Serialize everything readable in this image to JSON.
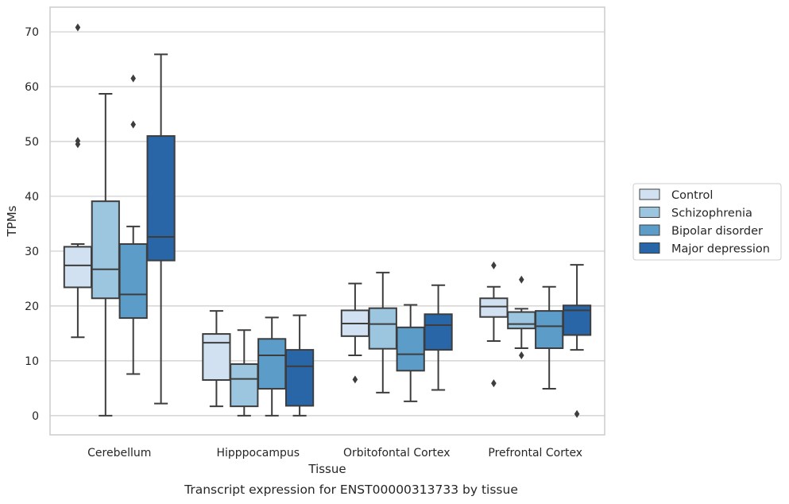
{
  "chart_data": {
    "type": "box",
    "title": "",
    "caption": "Transcript expression for ENST00000313733 by tissue",
    "xlabel": "Tissue",
    "ylabel": "TPMs",
    "ylim": [
      -3.5,
      74.5
    ],
    "yticks": [
      0,
      10,
      20,
      30,
      40,
      50,
      60,
      70
    ],
    "grid": "horizontal",
    "legend_position": "right",
    "categories": [
      "Cerebellum",
      "Hipppocampus",
      "Orbitofontal Cortex",
      "Prefrontal Cortex"
    ],
    "series": [
      {
        "name": "Control",
        "color": "#d1e1f1",
        "boxes": [
          {
            "whislo": 14.3,
            "q1": 23.4,
            "med": 27.4,
            "q3": 30.8,
            "whishi": 31.3,
            "fliers": [
              49.5,
              50.1,
              70.8
            ]
          },
          {
            "whislo": 1.7,
            "q1": 6.5,
            "med": 13.3,
            "q3": 14.9,
            "whishi": 19.1,
            "fliers": []
          },
          {
            "whislo": 11.0,
            "q1": 14.5,
            "med": 16.8,
            "q3": 19.2,
            "whishi": 24.1,
            "fliers": [
              6.6
            ]
          },
          {
            "whislo": 13.6,
            "q1": 18.0,
            "med": 19.9,
            "q3": 21.4,
            "whishi": 23.5,
            "fliers": [
              5.9,
              27.4
            ]
          }
        ]
      },
      {
        "name": "Schizophrenia",
        "color": "#9cc5df",
        "boxes": [
          {
            "whislo": 0.0,
            "q1": 21.4,
            "med": 26.7,
            "q3": 39.1,
            "whishi": 58.7,
            "fliers": []
          },
          {
            "whislo": 0.0,
            "q1": 1.7,
            "med": 6.7,
            "q3": 9.4,
            "whishi": 15.6,
            "fliers": []
          },
          {
            "whislo": 4.2,
            "q1": 12.2,
            "med": 16.7,
            "q3": 19.6,
            "whishi": 26.1,
            "fliers": []
          },
          {
            "whislo": 12.3,
            "q1": 15.9,
            "med": 16.7,
            "q3": 18.9,
            "whishi": 19.5,
            "fliers": [
              11.0,
              24.8
            ]
          }
        ]
      },
      {
        "name": "Bipolar disorder",
        "color": "#5b9cc9",
        "boxes": [
          {
            "whislo": 7.6,
            "q1": 17.8,
            "med": 22.1,
            "q3": 31.3,
            "whishi": 34.5,
            "fliers": [
              53.1,
              61.5
            ]
          },
          {
            "whislo": 0.0,
            "q1": 4.9,
            "med": 11.0,
            "q3": 14.0,
            "whishi": 17.9,
            "fliers": []
          },
          {
            "whislo": 2.6,
            "q1": 8.2,
            "med": 11.2,
            "q3": 16.1,
            "whishi": 20.2,
            "fliers": []
          },
          {
            "whislo": 4.9,
            "q1": 12.3,
            "med": 16.3,
            "q3": 19.1,
            "whishi": 23.5,
            "fliers": []
          }
        ]
      },
      {
        "name": "Major depression",
        "color": "#2866a8",
        "boxes": [
          {
            "whislo": 2.2,
            "q1": 28.3,
            "med": 32.6,
            "q3": 51.0,
            "whishi": 65.9,
            "fliers": []
          },
          {
            "whislo": 0.0,
            "q1": 1.8,
            "med": 9.0,
            "q3": 12.0,
            "whishi": 18.3,
            "fliers": []
          },
          {
            "whislo": 4.7,
            "q1": 12.0,
            "med": 16.5,
            "q3": 18.5,
            "whishi": 23.8,
            "fliers": []
          },
          {
            "whislo": 12.0,
            "q1": 14.7,
            "med": 19.2,
            "q3": 20.1,
            "whishi": 27.5,
            "fliers": [
              0.3
            ]
          }
        ]
      }
    ]
  }
}
